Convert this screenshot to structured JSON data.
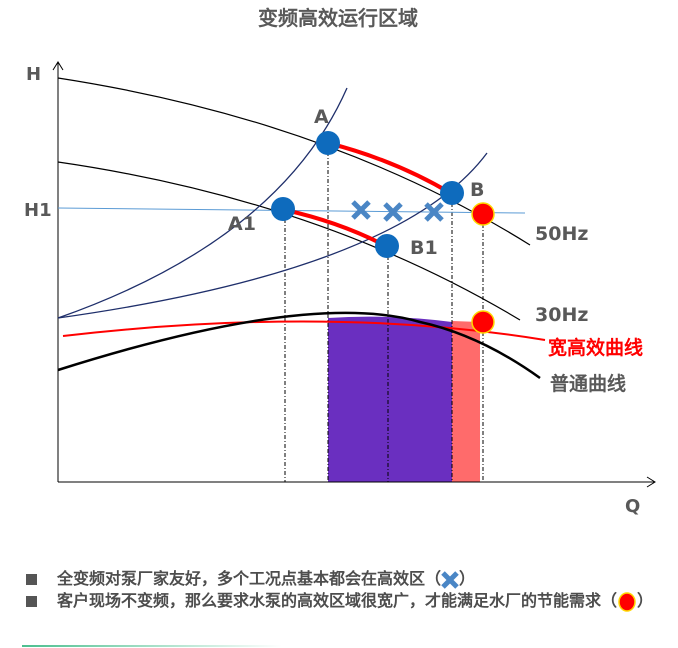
{
  "title": "变频高效运行区域",
  "axes": {
    "y_label": "H",
    "h1_label": "H1",
    "x_label": "Q"
  },
  "points": {
    "a": "A",
    "b": "B",
    "a1": "A1",
    "b1": "B1"
  },
  "curves": {
    "hz50": "50Hz",
    "hz30": "30Hz",
    "wide": "宽高效曲线",
    "normal": "普通曲线"
  },
  "bullets": [
    {
      "text": "全变频对泵厂家友好，多个工况点基本都会在高效区（",
      "icon": "blue-x-icon",
      "end": "）"
    },
    {
      "text": "客户现场不变频，那么要求水泵的高效区域很宽广，才能满足水厂的节能需求（",
      "icon": "red-dot-icon",
      "end": "）"
    }
  ],
  "colors": {
    "efficient_zone": "#6a2fc0",
    "wide_zone": "#ff6b6b",
    "highlight": "#ff0000",
    "point": "#0e6bbd",
    "cross": "#4a86c5",
    "system_curve": "#1f2f6b"
  }
}
